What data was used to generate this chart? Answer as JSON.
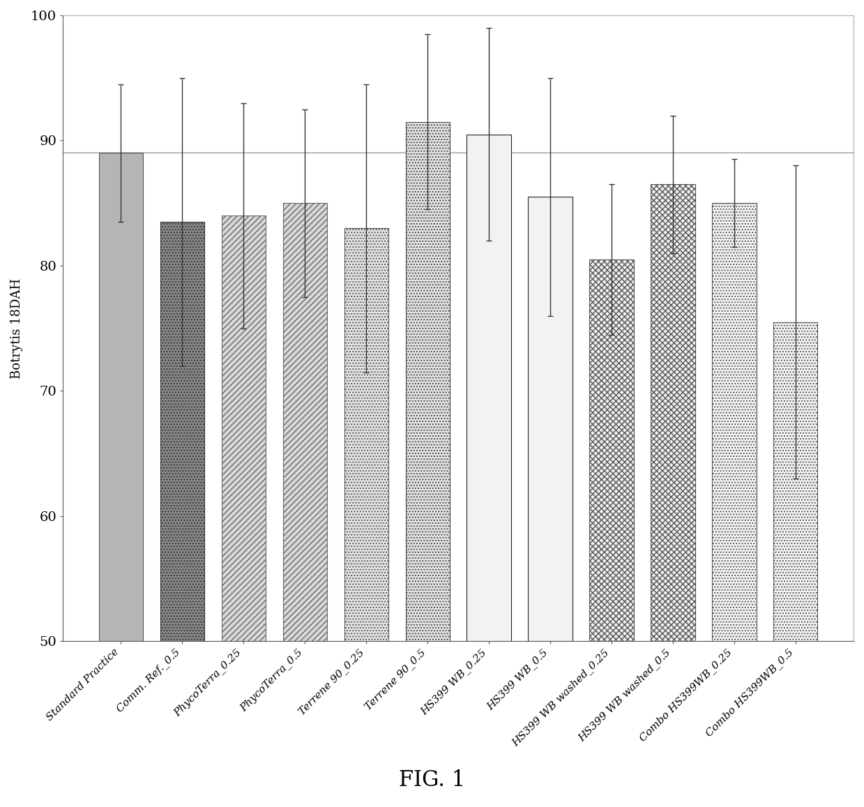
{
  "categories": [
    "Standard Practice",
    "Comm. Ref._0.5",
    "PhycoTerra_0.25",
    "PhycoTerra_0.5",
    "Terrene 90_0.25",
    "Terrene 90_0.5",
    "HS399 WB_0.25",
    "HS399 WB_0.5",
    "HS399 WB washed_0.25",
    "HS399 WB washed_0.5",
    "Combo HS399WB_0.25",
    "Combo HS399WB_0.5"
  ],
  "values": [
    89.0,
    83.5,
    84.0,
    85.0,
    83.0,
    91.5,
    90.5,
    85.5,
    80.5,
    86.5,
    85.0,
    75.5
  ],
  "errors": [
    5.5,
    11.5,
    9.0,
    7.5,
    11.5,
    7.0,
    8.5,
    9.5,
    6.0,
    5.5,
    3.5,
    12.5
  ],
  "ylim": [
    50,
    100
  ],
  "yticks": [
    50,
    60,
    70,
    80,
    90,
    100
  ],
  "reference_line": 89.0,
  "ylabel": "Botrytis 18DAH",
  "figure_label": "FIG. 1",
  "bar_width": 0.72,
  "background_color": "#ffffff",
  "hatch_list": [
    "",
    ".....",
    "////",
    "////",
    "xxxxx",
    ".....",
    "+++++",
    "+++++",
    "xxxxx",
    "xxxxx",
    ".....",
    "....."
  ],
  "fc_list": [
    "#b0b0b0",
    "#707070",
    "#d8d8d8",
    "#d8d8d8",
    "#e8e8e8",
    "#e8e8e8",
    "#e8e8e8",
    "#e8e8e8",
    "#e8e8e8",
    "#e8e8e8",
    "#e8e8e8",
    "#e8e8e8"
  ],
  "ec_list": [
    "#555555",
    "#333333",
    "#555555",
    "#555555",
    "#555555",
    "#555555",
    "#333333",
    "#333333",
    "#555555",
    "#555555",
    "#555555",
    "#555555"
  ]
}
